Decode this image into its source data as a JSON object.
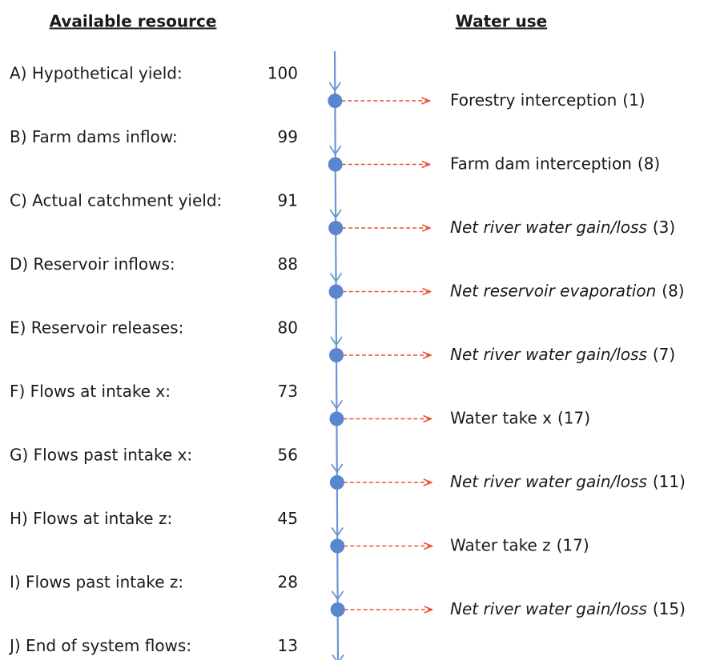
{
  "headers": {
    "left": "Available resource",
    "right": "Water use"
  },
  "resources": [
    {
      "label": "A) Hypothetical yield:",
      "value": 100
    },
    {
      "label": "B) Farm dams inflow:",
      "value": 99
    },
    {
      "label": "C) Actual catchment yield:",
      "value": 91
    },
    {
      "label": "D) Reservoir inflows:",
      "value": 88
    },
    {
      "label": "E) Reservoir releases:",
      "value": 80
    },
    {
      "label": "F) Flows at intake x:",
      "value": 73
    },
    {
      "label": "G) Flows past intake x:",
      "value": 56
    },
    {
      "label": "H) Flows at intake z:",
      "value": 45
    },
    {
      "label": "I) Flows past intake z:",
      "value": 28
    },
    {
      "label": "J) End of system flows:",
      "value": 13
    }
  ],
  "uses": [
    {
      "name": "Forestry interception",
      "amount": "(1)",
      "italic": false
    },
    {
      "name": "Farm dam interception",
      "amount": "(8)",
      "italic": false
    },
    {
      "name": "Net river water gain/loss",
      "amount": "(3)",
      "italic": true
    },
    {
      "name": "Net reservoir evaporation",
      "amount": "(8)",
      "italic": true
    },
    {
      "name": "Net river water gain/loss",
      "amount": "(7)",
      "italic": true
    },
    {
      "name": "Water take x",
      "amount": "(17)",
      "italic": false
    },
    {
      "name": "Net river water gain/loss",
      "amount": "(11)",
      "italic": true
    },
    {
      "name": "Water take z",
      "amount": "(17)",
      "italic": false
    },
    {
      "name": "Net river water gain/loss",
      "amount": "(15)",
      "italic": true
    }
  ]
}
